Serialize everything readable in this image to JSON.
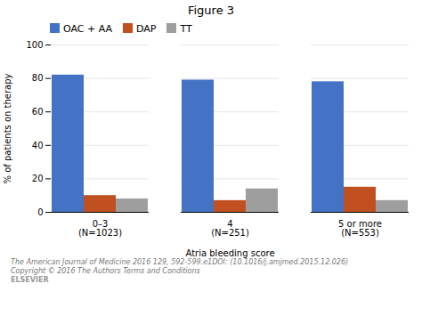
{
  "chart_data": {
    "type": "bar",
    "title": "Figure 3",
    "xlabel": "Atria bleeding score",
    "ylabel": "% of patients on therapy",
    "categories": [
      "0–3\n(N=1023)",
      "4\n(N=251)",
      "5 or more\n(N=553)"
    ],
    "series": [
      {
        "name": "OAC + AA",
        "color": "#4472C4",
        "values": [
          82,
          79,
          78
        ]
      },
      {
        "name": "DAP",
        "color": "#C0501F",
        "values": [
          10,
          7,
          15
        ]
      },
      {
        "name": "TT",
        "color": "#9E9E9E",
        "values": [
          8,
          14,
          7
        ]
      }
    ],
    "ylim": [
      0,
      100
    ],
    "yticks": [
      0,
      20,
      40,
      60,
      80,
      100
    ],
    "grid": true,
    "legend": "upper left",
    "annotations": [
      "The American Journal of Medicine 2016 129, 592-599.e1DOI: (10.1016/j.amjmed.2015.12.026)",
      "Copyright © 2016 The Authors Terms and Conditions",
      "ELSEVIER"
    ]
  }
}
